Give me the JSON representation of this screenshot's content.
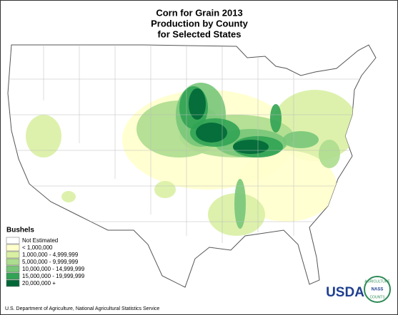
{
  "header": {
    "title_lines": [
      "Corn for Grain 2013",
      "Production by County",
      "for Selected States"
    ]
  },
  "legend": {
    "title": "Bushels",
    "items": [
      {
        "label": "Not Estimated",
        "color": "#ffffff"
      },
      {
        "label": "< 1,000,000",
        "color": "#ffffcc"
      },
      {
        "label": "1,000,000 -  4,999,999",
        "color": "#d9f0a3"
      },
      {
        "label": "5,000,000 -  9,999,999",
        "color": "#addd8e"
      },
      {
        "label": "10,000,000 - 14,999,999",
        "color": "#78c679"
      },
      {
        "label": "15,000,000 - 19,999,999",
        "color": "#31a354"
      },
      {
        "label": "20,000,000 +",
        "color": "#006837"
      }
    ]
  },
  "footer": {
    "source": "U.S. Department of Agriculture, National Agricultural Statistics Service"
  },
  "logo": {
    "name": "USDA",
    "arc_top": "AGRICULTURE",
    "arc_bottom": "COUNTS",
    "badge": "NASS"
  }
}
